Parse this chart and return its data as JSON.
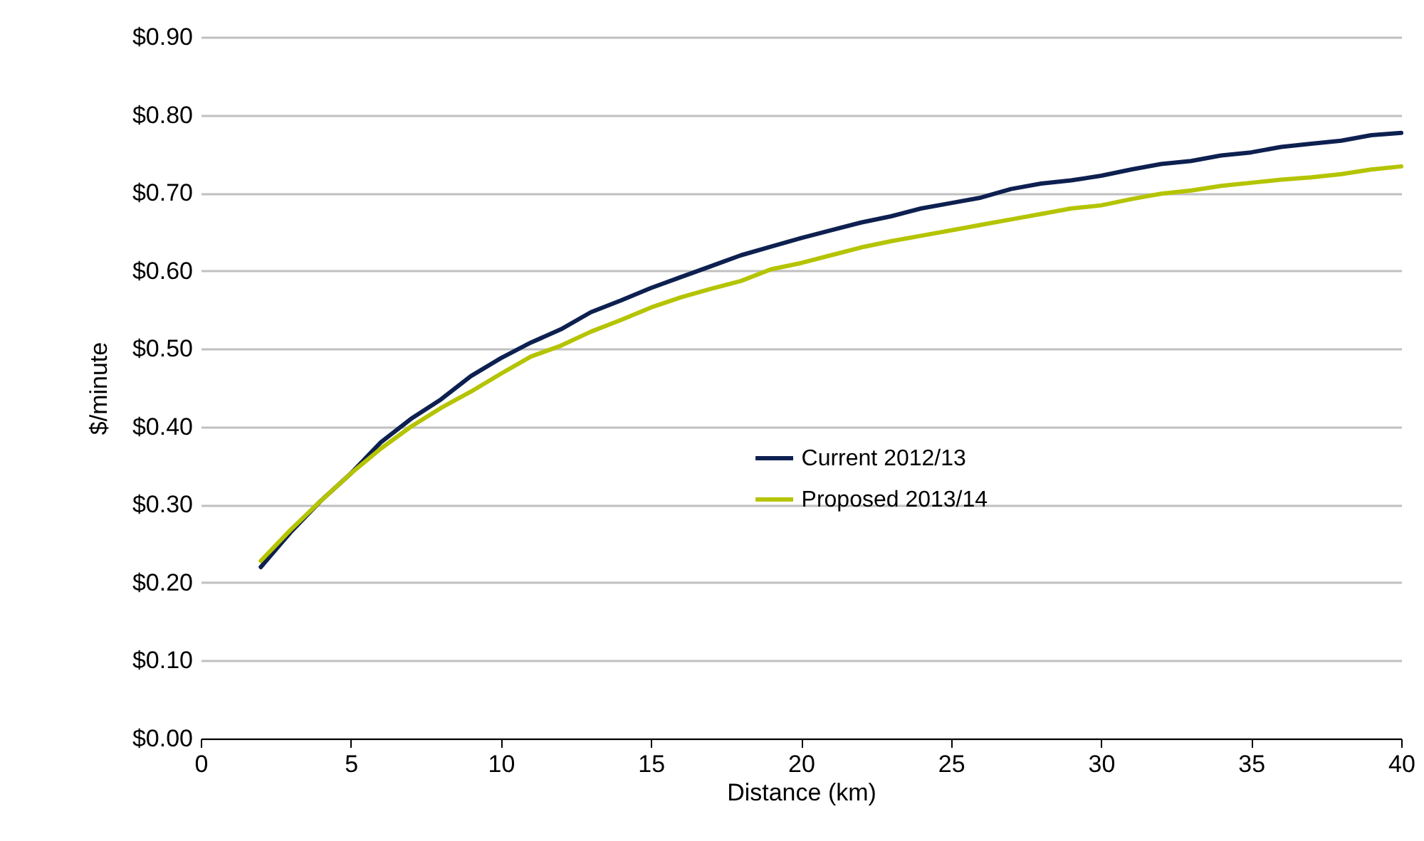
{
  "chart_data": {
    "type": "line",
    "xlabel": "Distance (km)",
    "ylabel": "$/minute",
    "x": [
      2,
      3,
      4,
      5,
      6,
      7,
      8,
      9,
      10,
      11,
      12,
      13,
      14,
      15,
      16,
      17,
      18,
      19,
      20,
      21,
      22,
      23,
      24,
      25,
      26,
      27,
      28,
      29,
      30,
      31,
      32,
      33,
      34,
      35,
      36,
      37,
      38,
      39,
      40
    ],
    "series": [
      {
        "name": "Current 2012/13",
        "color": "#0d2050",
        "values": [
          0.22,
          0.265,
          0.305,
          0.34,
          0.38,
          0.41,
          0.435,
          0.465,
          0.488,
          0.508,
          0.525,
          0.547,
          0.562,
          0.578,
          0.592,
          0.606,
          0.62,
          0.631,
          0.642,
          0.652,
          0.662,
          0.67,
          0.68,
          0.687,
          0.694,
          0.705,
          0.712,
          0.716,
          0.722,
          0.73,
          0.737,
          0.741,
          0.748,
          0.752,
          0.759,
          0.763,
          0.767,
          0.774,
          0.777
        ]
      },
      {
        "name": "Proposed 2013/14",
        "color": "#b5c400",
        "values": [
          0.228,
          0.268,
          0.305,
          0.34,
          0.372,
          0.4,
          0.424,
          0.445,
          0.468,
          0.49,
          0.504,
          0.522,
          0.537,
          0.553,
          0.566,
          0.577,
          0.587,
          0.602,
          0.61,
          0.62,
          0.63,
          0.638,
          0.645,
          0.652,
          0.659,
          0.666,
          0.673,
          0.68,
          0.684,
          0.692,
          0.699,
          0.703,
          0.709,
          0.713,
          0.717,
          0.72,
          0.724,
          0.73,
          0.734
        ]
      }
    ],
    "xlim": [
      0,
      40
    ],
    "xticks": [
      0,
      5,
      10,
      15,
      20,
      25,
      30,
      35,
      40
    ],
    "ylim": [
      0,
      0.9
    ],
    "yticks": [
      {
        "value": 0,
        "label": "$0.00"
      },
      {
        "value": 0.1,
        "label": "$0.10"
      },
      {
        "value": 0.2,
        "label": "$0.20"
      },
      {
        "value": 0.3,
        "label": "$0.30"
      },
      {
        "value": 0.4,
        "label": "$0.40"
      },
      {
        "value": 0.5,
        "label": "$0.50"
      },
      {
        "value": 0.6,
        "label": "$0.60"
      },
      {
        "value": 0.7,
        "label": "$0.70"
      },
      {
        "value": 0.8,
        "label": "$0.80"
      },
      {
        "value": 0.9,
        "label": "$0.90"
      }
    ],
    "grid": "y",
    "legend": "center right",
    "line_style": "solid",
    "marker": "none"
  }
}
